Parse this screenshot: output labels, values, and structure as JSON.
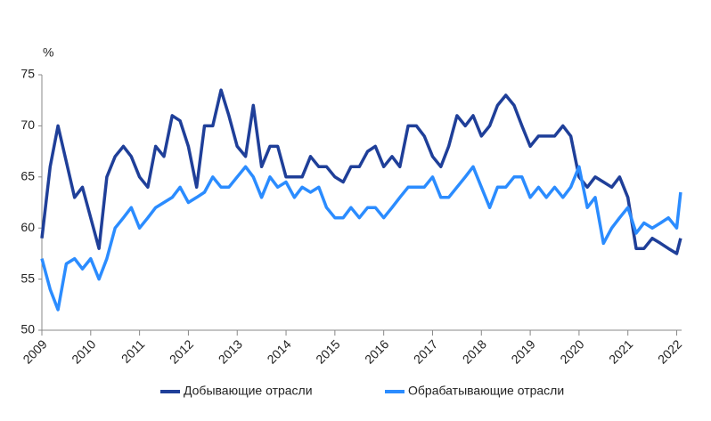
{
  "chart_data": {
    "type": "line",
    "y_label": "%",
    "x": [
      2009,
      2009.17,
      2009.33,
      2009.5,
      2009.67,
      2009.83,
      2010,
      2010.17,
      2010.33,
      2010.5,
      2010.67,
      2010.83,
      2011,
      2011.17,
      2011.33,
      2011.5,
      2011.67,
      2011.83,
      2012,
      2012.17,
      2012.33,
      2012.5,
      2012.67,
      2012.83,
      2013,
      2013.17,
      2013.33,
      2013.5,
      2013.67,
      2013.83,
      2014,
      2014.17,
      2014.33,
      2014.5,
      2014.67,
      2014.83,
      2015,
      2015.17,
      2015.33,
      2015.5,
      2015.67,
      2015.83,
      2016,
      2016.17,
      2016.33,
      2016.5,
      2016.67,
      2016.83,
      2017,
      2017.17,
      2017.33,
      2017.5,
      2017.67,
      2017.83,
      2018,
      2018.17,
      2018.33,
      2018.5,
      2018.67,
      2018.83,
      2019,
      2019.17,
      2019.33,
      2019.5,
      2019.67,
      2019.83,
      2020,
      2020.17,
      2020.33,
      2020.5,
      2020.67,
      2020.83,
      2021,
      2021.17,
      2021.33,
      2021.5,
      2021.67,
      2021.83,
      2022,
      2022.08
    ],
    "series": [
      {
        "name": "Добывающие отрасли",
        "color": "#1f3f99",
        "values": [
          59,
          66,
          70,
          66.5,
          63,
          64,
          61,
          58,
          65,
          67,
          68,
          67,
          65,
          64,
          68,
          67,
          71,
          70.5,
          68,
          64,
          70,
          70,
          73.5,
          71,
          68,
          67,
          72,
          66,
          68,
          68,
          65,
          65,
          65,
          67,
          66,
          66,
          65,
          64.5,
          66,
          66,
          67.5,
          68,
          66,
          67,
          66,
          70,
          70,
          69,
          67,
          66,
          68,
          71,
          70,
          71,
          69,
          70,
          72,
          73,
          72,
          70,
          68,
          69,
          69,
          69,
          70,
          69,
          65,
          64,
          65,
          64.5,
          64,
          65,
          63,
          58,
          58,
          59,
          58.5,
          58,
          57.5,
          59
        ]
      },
      {
        "name": "Обрабатывающие отрасли",
        "color": "#2b8cff",
        "values": [
          57,
          54,
          52,
          56.5,
          57,
          56,
          57,
          55,
          57,
          60,
          61,
          62,
          60,
          61,
          62,
          62.5,
          63,
          64,
          62.5,
          63,
          63.5,
          65,
          64,
          64,
          65,
          66,
          65,
          63,
          65,
          64,
          64.5,
          63,
          64,
          63.5,
          64,
          62,
          61,
          61,
          62,
          61,
          62,
          62,
          61,
          62,
          63,
          64,
          64,
          64,
          65,
          63,
          63,
          64,
          65,
          66,
          64,
          62,
          64,
          64,
          65,
          65,
          63,
          64,
          63,
          64,
          63,
          64,
          66,
          62,
          63,
          58.5,
          60,
          61,
          62,
          59.5,
          60.5,
          60,
          60.5,
          61,
          60,
          63.5
        ]
      }
    ],
    "xlim": [
      2009,
      2022.1
    ],
    "xticks": [
      2009,
      2010,
      2011,
      2012,
      2013,
      2014,
      2015,
      2016,
      2017,
      2018,
      2019,
      2020,
      2021,
      2022
    ],
    "ylim": [
      50,
      75
    ],
    "yticks": [
      50,
      55,
      60,
      65,
      70,
      75
    ]
  }
}
